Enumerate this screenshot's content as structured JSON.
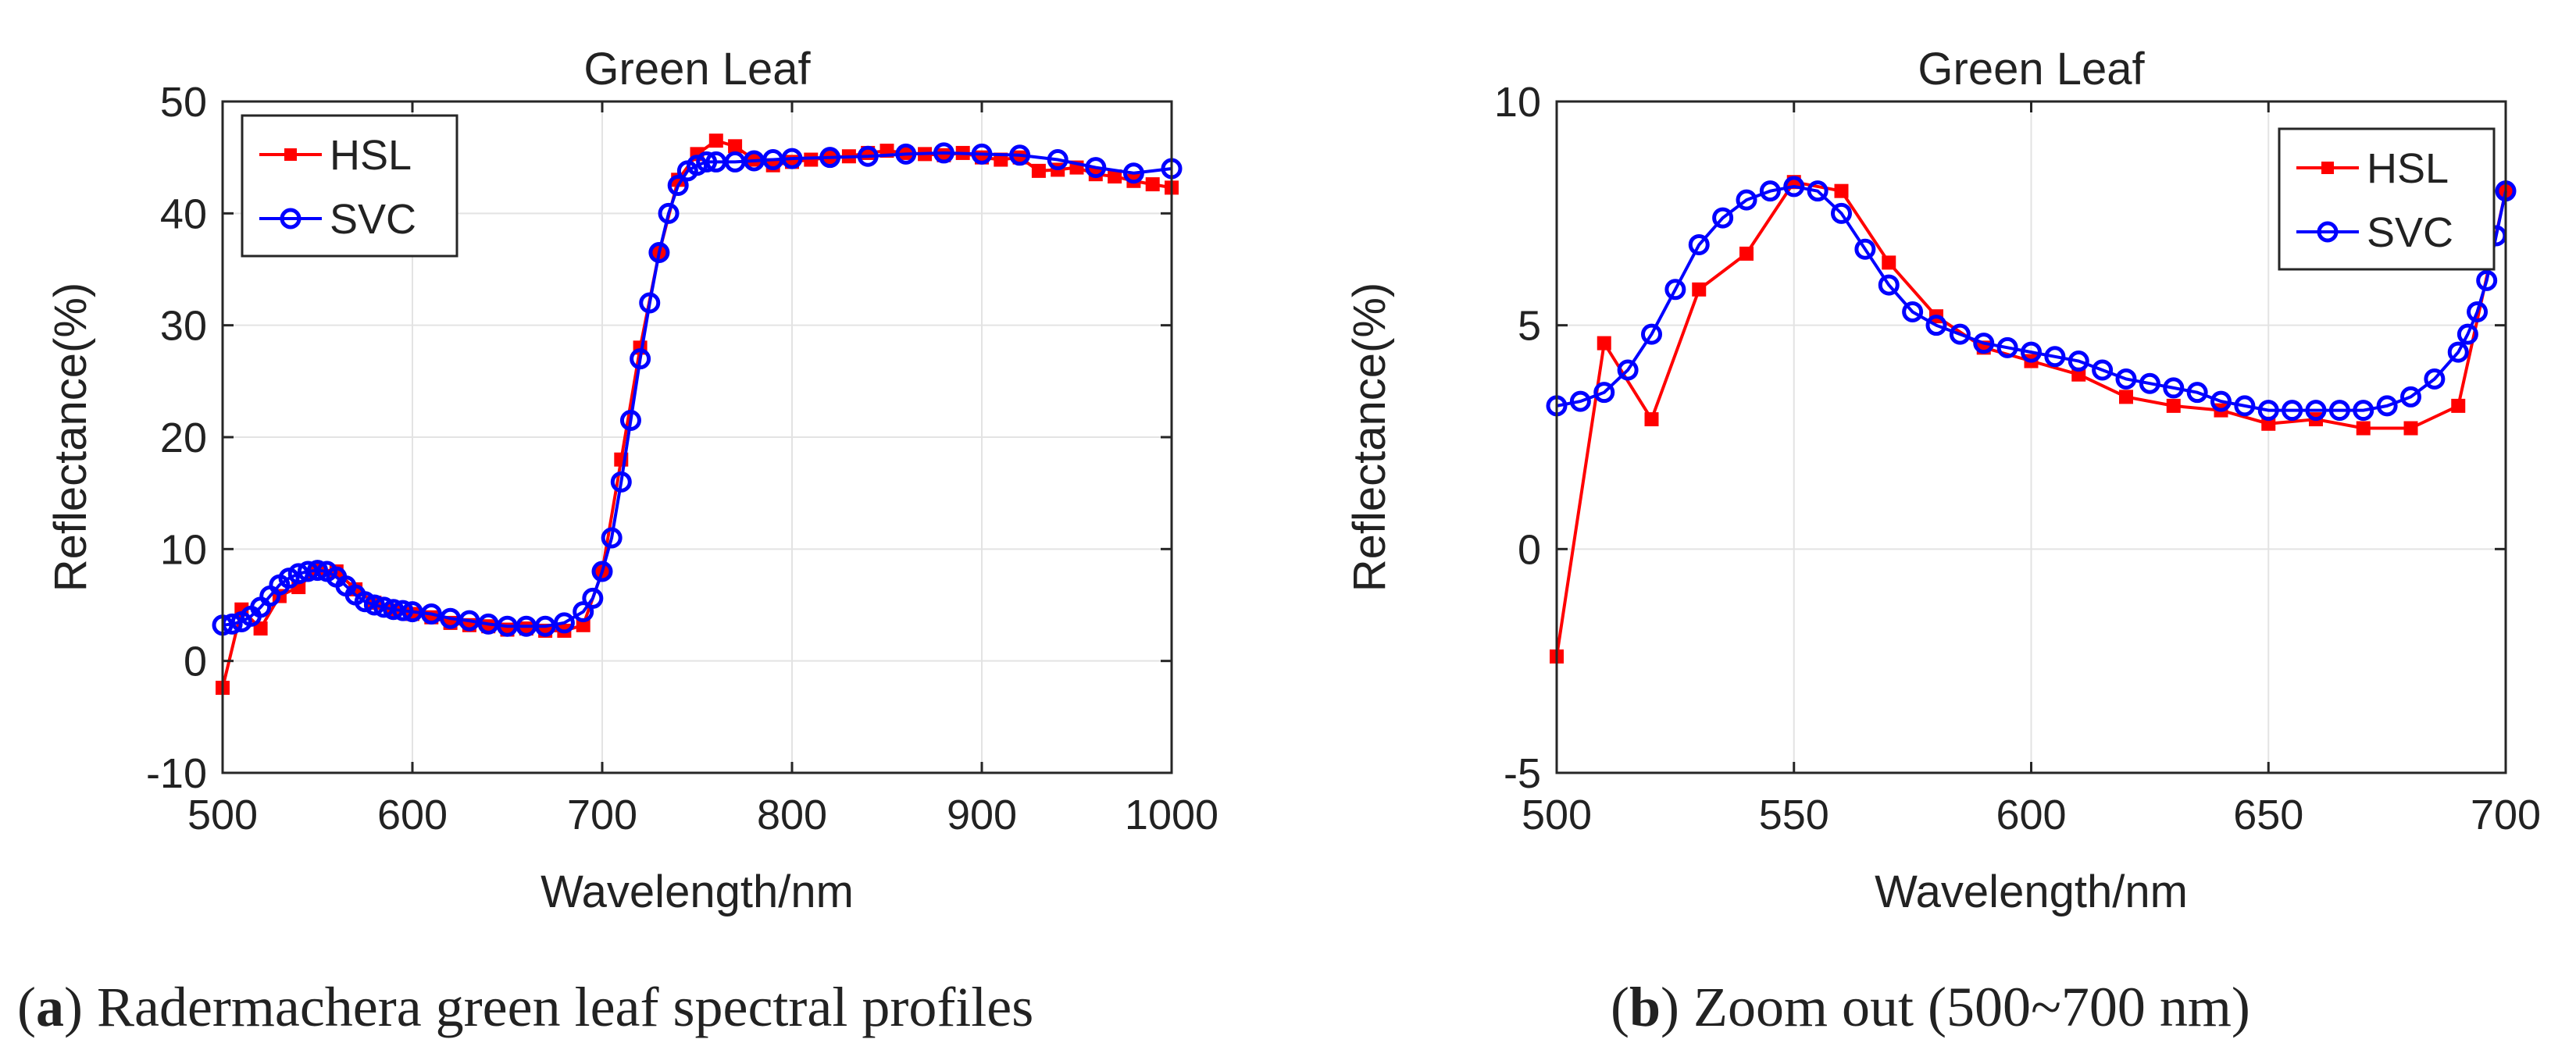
{
  "chart_data": [
    {
      "type": "line",
      "title": "Green Leaf",
      "xlabel": "Wavelength/nm",
      "ylabel": "Reflectance(%)",
      "xlim": [
        500,
        1000
      ],
      "ylim": [
        -10,
        50
      ],
      "xticks": [
        "500",
        "600",
        "700",
        "800",
        "900",
        "1000"
      ],
      "yticks": [
        "-10",
        "0",
        "10",
        "20",
        "30",
        "40",
        "50"
      ],
      "grid": true,
      "legend_position": "top-left",
      "caption_label": "a",
      "caption_text": ") Radermachera green leaf spectral profiles",
      "caption_open": "(",
      "series": [
        {
          "name": "HSL",
          "color": "#ff0000",
          "marker": "square",
          "x": [
            500,
            510,
            520,
            530,
            540,
            550,
            560,
            570,
            580,
            590,
            600,
            610,
            620,
            630,
            640,
            650,
            660,
            670,
            680,
            690,
            700,
            710,
            720,
            730,
            740,
            750,
            760,
            770,
            780,
            790,
            800,
            810,
            820,
            830,
            840,
            850,
            860,
            870,
            880,
            890,
            900,
            910,
            920,
            930,
            940,
            950,
            960,
            970,
            980,
            990,
            1000
          ],
          "y": [
            -2.4,
            4.6,
            2.9,
            5.8,
            6.6,
            8.2,
            8.0,
            6.4,
            5.2,
            4.5,
            4.2,
            3.9,
            3.4,
            3.2,
            3.1,
            2.8,
            2.9,
            2.7,
            2.7,
            3.2,
            8.0,
            18.0,
            28.0,
            36.5,
            43.0,
            45.3,
            46.5,
            46.0,
            44.8,
            44.3,
            44.6,
            44.8,
            45.0,
            45.1,
            45.4,
            45.6,
            45.4,
            45.3,
            45.2,
            45.4,
            45.0,
            44.8,
            45.0,
            43.8,
            43.9,
            44.1,
            43.5,
            43.3,
            42.9,
            42.6,
            42.3
          ]
        },
        {
          "name": "SVC",
          "color": "#0000ff",
          "marker": "circle",
          "x": [
            500,
            505,
            510,
            515,
            520,
            525,
            530,
            535,
            540,
            545,
            550,
            555,
            560,
            565,
            570,
            575,
            580,
            585,
            590,
            595,
            600,
            610,
            620,
            630,
            640,
            650,
            660,
            670,
            680,
            690,
            695,
            700,
            705,
            710,
            715,
            720,
            725,
            730,
            735,
            740,
            745,
            750,
            755,
            760,
            770,
            780,
            790,
            800,
            820,
            840,
            860,
            880,
            900,
            920,
            940,
            960,
            980,
            1000
          ],
          "y": [
            3.2,
            3.3,
            3.5,
            4.0,
            4.8,
            5.8,
            6.8,
            7.4,
            7.8,
            8.0,
            8.1,
            8.0,
            7.5,
            6.7,
            5.9,
            5.3,
            5.0,
            4.8,
            4.6,
            4.5,
            4.4,
            4.2,
            3.8,
            3.6,
            3.3,
            3.1,
            3.1,
            3.1,
            3.4,
            4.4,
            5.6,
            8.0,
            11.0,
            16.0,
            21.5,
            27.0,
            32.0,
            36.5,
            40.0,
            42.5,
            43.8,
            44.3,
            44.6,
            44.6,
            44.6,
            44.7,
            44.8,
            44.9,
            45.0,
            45.1,
            45.3,
            45.4,
            45.3,
            45.2,
            44.8,
            44.1,
            43.6,
            44.0
          ]
        }
      ]
    },
    {
      "type": "line",
      "title": "Green Leaf",
      "xlabel": "Wavelength/nm",
      "ylabel": "Reflectance(%)",
      "xlim": [
        500,
        700
      ],
      "ylim": [
        -5,
        10
      ],
      "xticks": [
        "500",
        "550",
        "600",
        "650",
        "700"
      ],
      "yticks": [
        "-5",
        "0",
        "5",
        "10"
      ],
      "grid": true,
      "legend_position": "top-right",
      "caption_label": "b",
      "caption_text": ") Zoom out (500~700 nm)",
      "caption_open": "(",
      "series": [
        {
          "name": "HSL",
          "color": "#ff0000",
          "marker": "square",
          "x": [
            500,
            510,
            520,
            530,
            540,
            550,
            560,
            570,
            580,
            590,
            600,
            610,
            620,
            630,
            640,
            650,
            660,
            670,
            680,
            690,
            700
          ],
          "y": [
            -2.4,
            4.6,
            2.9,
            5.8,
            6.6,
            8.2,
            8.0,
            6.4,
            5.2,
            4.5,
            4.2,
            3.9,
            3.4,
            3.2,
            3.1,
            2.8,
            2.9,
            2.7,
            2.7,
            3.2,
            8.0
          ]
        },
        {
          "name": "SVC",
          "color": "#0000ff",
          "marker": "circle",
          "x": [
            500,
            505,
            510,
            515,
            520,
            525,
            530,
            535,
            540,
            545,
            550,
            555,
            560,
            565,
            570,
            575,
            580,
            585,
            590,
            595,
            600,
            605,
            610,
            615,
            620,
            625,
            630,
            635,
            640,
            645,
            650,
            655,
            660,
            665,
            670,
            675,
            680,
            685,
            690,
            692,
            694,
            696,
            698,
            700
          ],
          "y": [
            3.2,
            3.3,
            3.5,
            4.0,
            4.8,
            5.8,
            6.8,
            7.4,
            7.8,
            8.0,
            8.1,
            8.0,
            7.5,
            6.7,
            5.9,
            5.3,
            5.0,
            4.8,
            4.6,
            4.5,
            4.4,
            4.3,
            4.2,
            4.0,
            3.8,
            3.7,
            3.6,
            3.5,
            3.3,
            3.2,
            3.1,
            3.1,
            3.1,
            3.1,
            3.1,
            3.2,
            3.4,
            3.8,
            4.4,
            4.8,
            5.3,
            6.0,
            7.0,
            8.0
          ]
        }
      ]
    }
  ]
}
